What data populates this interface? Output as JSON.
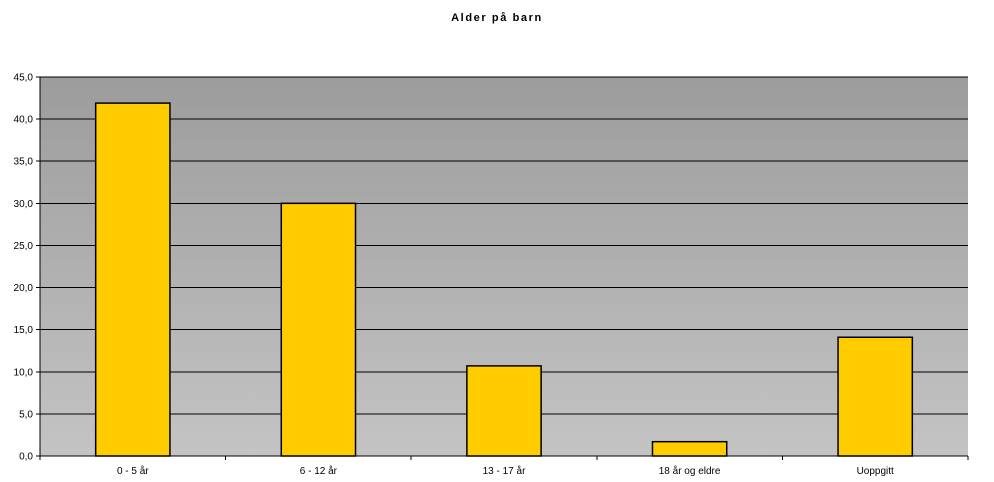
{
  "chart_data": {
    "type": "bar",
    "title": "Alder på barn",
    "xlabel": "",
    "ylabel": "",
    "categories": [
      "0 - 5 år",
      "6 - 12 år",
      "13 - 17 år",
      "18 år og eldre",
      "Uoppgitt"
    ],
    "values": [
      41.9,
      30.0,
      10.7,
      1.7,
      14.1
    ],
    "ylim": [
      0,
      45
    ],
    "yticks": [
      "0,0",
      "5,0",
      "10,0",
      "15,0",
      "20,0",
      "25,0",
      "30,0",
      "35,0",
      "40,0",
      "45,0"
    ],
    "grid": true,
    "legend": "none",
    "colors": {
      "bar_fill": "#FFCC00",
      "bar_stroke": "#000000",
      "plot_gradient_top": "#9C9C9C",
      "plot_gradient_bottom": "#C4C4C4",
      "gridline": "#000000"
    }
  }
}
